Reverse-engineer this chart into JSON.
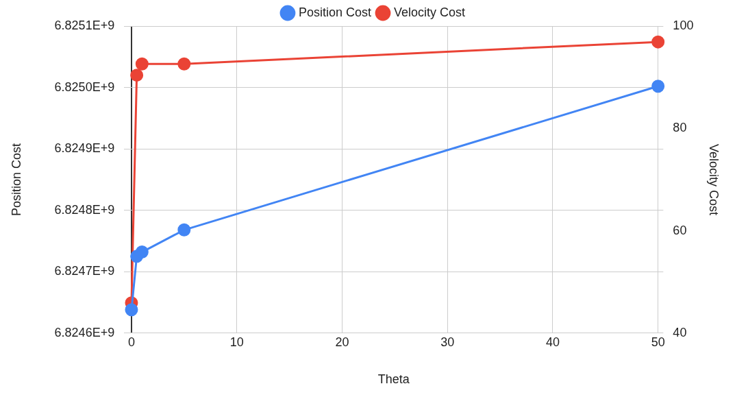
{
  "chart_data": {
    "type": "line",
    "xlabel": "Theta",
    "ylabel": "Position Cost",
    "y2label": "Velocity Cost",
    "x": [
      0,
      0.5,
      1,
      5,
      50
    ],
    "series": [
      {
        "name": "Position Cost",
        "color": "#4285f4",
        "values": [
          6824638000,
          6824725000,
          6824732000,
          6824768000,
          6825002000
        ]
      },
      {
        "name": "Velocity Cost",
        "color": "#ea4335",
        "axis": "y2",
        "values": [
          45.9,
          90.4,
          92.6,
          92.6,
          96.9
        ]
      }
    ],
    "xlim": [
      -0.7,
      50.5
    ],
    "xticks": [
      0,
      10,
      20,
      30,
      40,
      50
    ],
    "ylim": [
      6824600000,
      6825100000
    ],
    "yticks": [
      {
        "value": 6824600000,
        "label": "6.8246E+9"
      },
      {
        "value": 6824700000,
        "label": "6.8247E+9"
      },
      {
        "value": 6824800000,
        "label": "6.8248E+9"
      },
      {
        "value": 6824900000,
        "label": "6.8249E+9"
      },
      {
        "value": 6825000000,
        "label": "6.8250E+9"
      },
      {
        "value": 6825100000,
        "label": "6.8251E+9"
      }
    ],
    "y2lim": [
      40,
      100
    ],
    "y2ticks": [
      40,
      60,
      80,
      100
    ],
    "grid": true,
    "legend": "top",
    "marker": "circle",
    "line_style": "solid"
  }
}
